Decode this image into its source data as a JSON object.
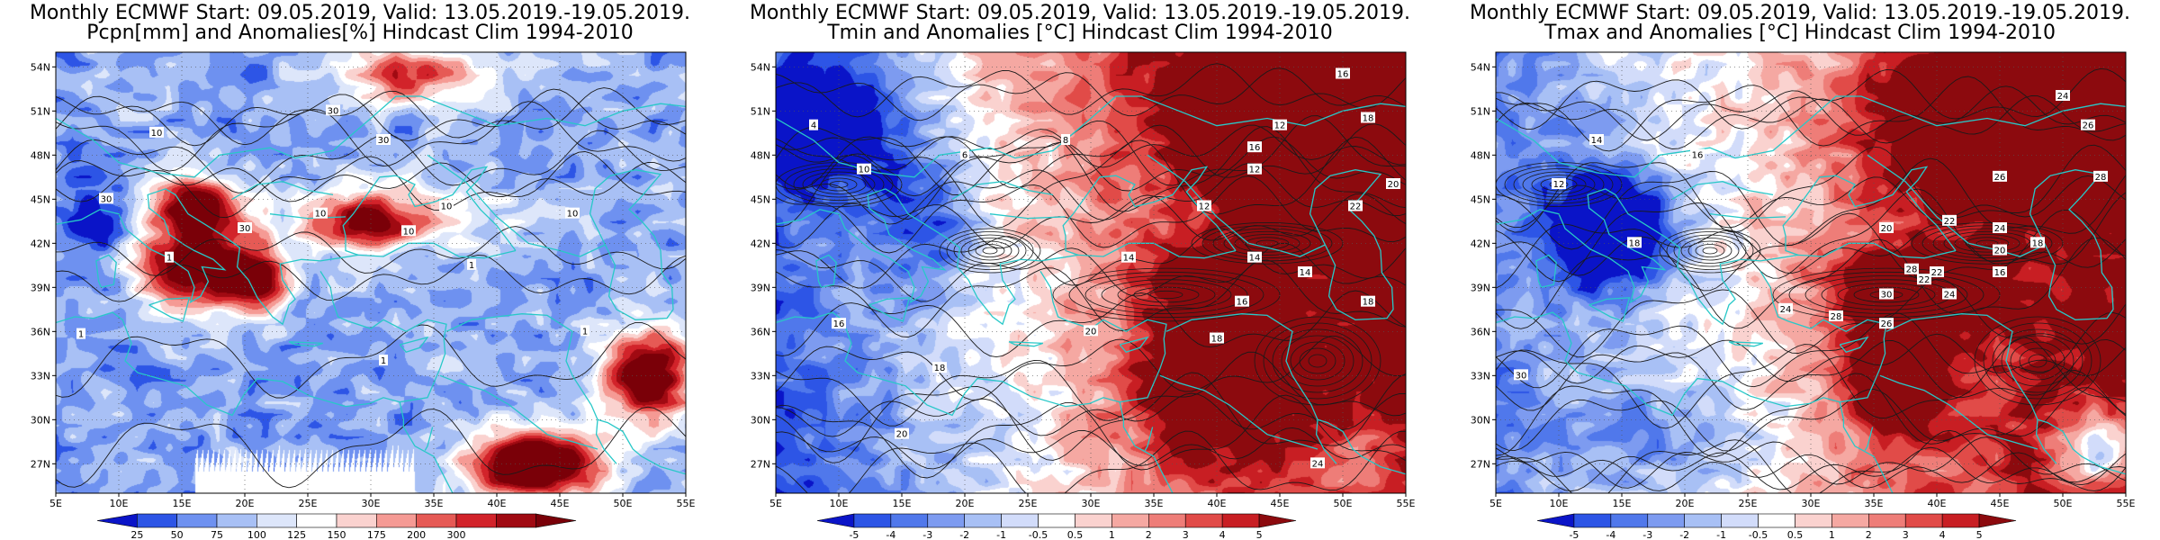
{
  "chart_data": [
    {
      "type": "heatmap",
      "title": "Monthly ECMWF Start: 09.05.2019, Valid: 13.05.2019.-19.05.2019.",
      "subtitle": "Pcpn[mm] and Anomalies[%] Hindcast Clim 1994-2010",
      "x_ticks": [
        "5E",
        "10E",
        "15E",
        "20E",
        "25E",
        "30E",
        "35E",
        "40E",
        "45E",
        "50E",
        "55E"
      ],
      "y_ticks": [
        "27N",
        "30N",
        "33N",
        "36N",
        "39N",
        "42N",
        "45N",
        "48N",
        "51N",
        "54N"
      ],
      "xlim": [
        5,
        55
      ],
      "ylim": [
        25,
        55
      ],
      "colorbar_ticks": [
        "25",
        "50",
        "75",
        "100",
        "125",
        "150",
        "175",
        "200",
        "300"
      ],
      "colorbar_colors": [
        "#0a14c8",
        "#2d55e6",
        "#6e91f0",
        "#a8c0f5",
        "#dde6fa",
        "#ffffff",
        "#fad2cf",
        "#f59a94",
        "#e65a55",
        "#d2232a",
        "#a00a12",
        "#7a0008"
      ],
      "contour_labels": [
        "30",
        "30",
        "30",
        "30",
        "10",
        "10",
        "10",
        "10",
        "10",
        "1",
        "1",
        "1",
        "1",
        "1"
      ],
      "grid": true
    },
    {
      "type": "heatmap",
      "title": "Monthly ECMWF Start: 09.05.2019, Valid: 13.05.2019.-19.05.2019.",
      "subtitle": "Tmin and Anomalies [°C] Hindcast Clim 1994-2010",
      "x_ticks": [
        "5E",
        "10E",
        "15E",
        "20E",
        "25E",
        "30E",
        "35E",
        "40E",
        "45E",
        "50E",
        "55E"
      ],
      "y_ticks": [
        "27N",
        "30N",
        "33N",
        "36N",
        "39N",
        "42N",
        "45N",
        "48N",
        "51N",
        "54N"
      ],
      "xlim": [
        5,
        55
      ],
      "ylim": [
        25,
        55
      ],
      "colorbar_ticks": [
        "-5",
        "-4",
        "-3",
        "-2",
        "-1",
        "-0.5",
        "0.5",
        "1",
        "2",
        "3",
        "4",
        "5"
      ],
      "colorbar_colors": [
        "#0a14c8",
        "#2d55e6",
        "#5078eb",
        "#7d9bf0",
        "#a8c0f5",
        "#d2dcfa",
        "#ffffff",
        "#fad2cf",
        "#f5a8a2",
        "#ee7d78",
        "#e14b48",
        "#c81e23",
        "#8c0a0e"
      ],
      "contour_labels": [
        "16",
        "16",
        "18",
        "20",
        "22",
        "12",
        "12",
        "14",
        "14",
        "16",
        "18",
        "18",
        "20",
        "24",
        "4",
        "6",
        "8",
        "10",
        "12",
        "14",
        "16",
        "18",
        "20"
      ],
      "grid": true
    },
    {
      "type": "heatmap",
      "title": "Monthly ECMWF Start: 09.05.2019, Valid: 13.05.2019.-19.05.2019.",
      "subtitle": "Tmax and Anomalies [°C] Hindcast Clim 1994-2010",
      "x_ticks": [
        "5E",
        "10E",
        "15E",
        "20E",
        "25E",
        "30E",
        "35E",
        "40E",
        "45E",
        "50E",
        "55E"
      ],
      "y_ticks": [
        "27N",
        "30N",
        "33N",
        "36N",
        "39N",
        "42N",
        "45N",
        "48N",
        "51N",
        "54N"
      ],
      "xlim": [
        5,
        55
      ],
      "ylim": [
        25,
        55
      ],
      "colorbar_ticks": [
        "-5",
        "-4",
        "-3",
        "-2",
        "-1",
        "-0.5",
        "0.5",
        "1",
        "2",
        "3",
        "4",
        "5"
      ],
      "colorbar_colors": [
        "#0a14c8",
        "#2d55e6",
        "#5078eb",
        "#7d9bf0",
        "#a8c0f5",
        "#d2dcfa",
        "#ffffff",
        "#fad2cf",
        "#f5a8a2",
        "#ee7d78",
        "#e14b48",
        "#c81e23",
        "#8c0a0e"
      ],
      "contour_labels": [
        "24",
        "26",
        "28",
        "26",
        "22",
        "24",
        "16",
        "18",
        "20",
        "22",
        "24",
        "26",
        "28",
        "30",
        "12",
        "14",
        "16",
        "18",
        "20",
        "22",
        "24",
        "28",
        "30"
      ],
      "grid": true
    }
  ]
}
